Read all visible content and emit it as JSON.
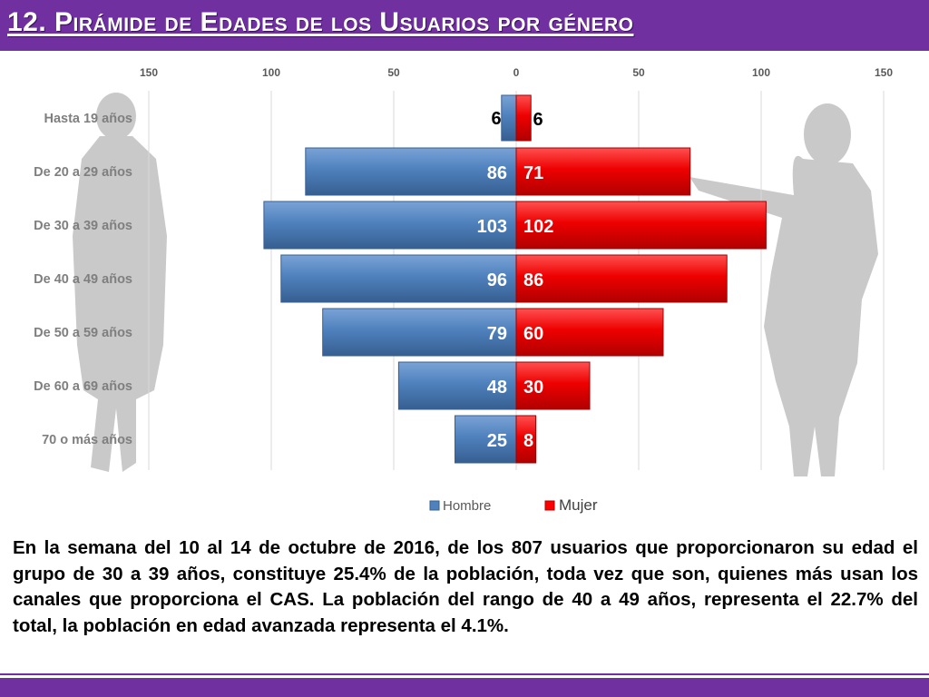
{
  "title": "12. Pirámide de Edades de los Usuarios por género",
  "description": "En la semana del 10 al 14 de octubre de 2016, de los 807 usuarios  que proporcionaron su edad el grupo de 30 a 39 años,  constituye 25.4% de la población, toda vez que son, quienes más usan los canales que proporciona el CAS. La población del rango de 40 a 49 años, representa el 22.7% del total, la población en edad avanzada representa el 4.1%.",
  "colors": {
    "accent": "#7030a0",
    "hombre": "#4f81bd",
    "mujer": "#ff0000",
    "silhouette": "#bfbfbf"
  },
  "chart_data": {
    "type": "bar",
    "orientation": "horizontal-population-pyramid",
    "title": "",
    "categories": [
      "Hasta 19 años",
      "De 20 a 29 años",
      "De 30 a 39 años",
      "De 40 a 49 años",
      "De 50 a 59 años",
      "De 60 a 69 años",
      "70 o más años"
    ],
    "series": [
      {
        "name": "Hombre",
        "side": "left",
        "values": [
          6,
          86,
          103,
          96,
          79,
          48,
          25
        ]
      },
      {
        "name": "Mujer",
        "side": "right",
        "values": [
          6,
          71,
          102,
          86,
          60,
          30,
          8
        ]
      }
    ],
    "xlim": [
      -150,
      150
    ],
    "xticks": [
      -150,
      -100,
      -50,
      0,
      50,
      100,
      150
    ],
    "xtick_labels": [
      "150",
      "100",
      "50",
      "0",
      "50",
      "100",
      "150"
    ],
    "grid": true,
    "legend": "bottom",
    "xlabel": "",
    "ylabel": ""
  }
}
